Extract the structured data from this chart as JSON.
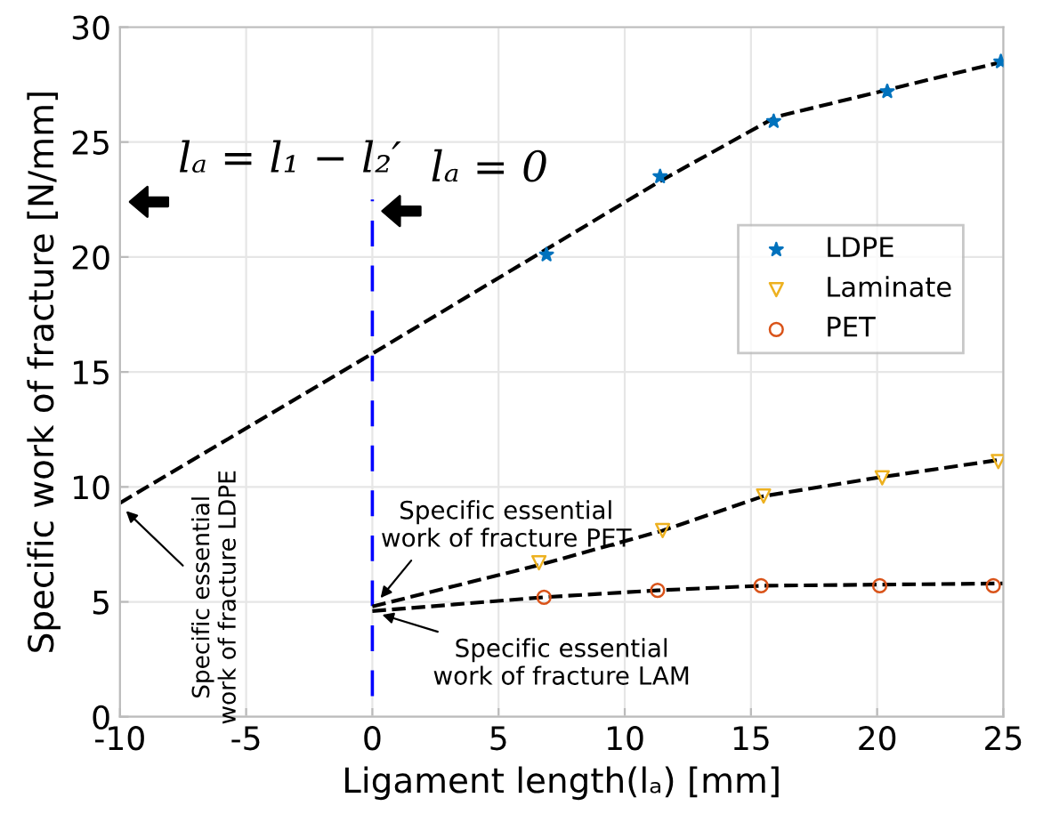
{
  "chart_data": {
    "type": "scatter",
    "xlabel": "Ligament length(lₐ) [mm]",
    "ylabel": "Specific work of fracture [N/mm]",
    "xlim": [
      -10,
      25
    ],
    "xticks": [
      -10,
      -5,
      0,
      5,
      10,
      15,
      20,
      25
    ],
    "ylim": [
      0,
      30
    ],
    "yticks": [
      0,
      5,
      10,
      15,
      20,
      25,
      30
    ],
    "grid": true,
    "legend": "right",
    "series": [
      {
        "name": "LDPE",
        "color": "#0072bd",
        "marker": "star",
        "x": [
          6.9,
          11.4,
          15.9,
          20.4,
          24.9
        ],
        "values": [
          20.1,
          23.5,
          25.9,
          27.2,
          28.5
        ]
      },
      {
        "name": "Laminate",
        "color": "#edb120",
        "marker": "triangle",
        "x": [
          6.6,
          11.5,
          15.5,
          20.2,
          24.8
        ],
        "values": [
          6.7,
          8.1,
          9.6,
          10.4,
          11.1
        ]
      },
      {
        "name": "PET",
        "color": "#d95319",
        "marker": "circle",
        "x": [
          6.8,
          11.3,
          15.4,
          20.1,
          24.6
        ],
        "values": [
          5.2,
          5.5,
          5.7,
          5.7,
          5.7
        ]
      },
      {
        "type": "line",
        "color": "#000000",
        "line_style": "dashed",
        "marker": "none",
        "x": [
          -10,
          0,
          11.4,
          16,
          25
        ],
        "values": [
          9.3,
          15.8,
          23.3,
          26.1,
          28.5
        ]
      },
      {
        "type": "line",
        "color": "#000000",
        "line_style": "dashed",
        "marker": "none",
        "x": [
          0,
          6.6,
          11.5,
          15.5,
          20,
          25
        ],
        "values": [
          4.8,
          6.6,
          8.1,
          9.6,
          10.4,
          11.2
        ]
      },
      {
        "type": "line",
        "color": "#000000",
        "line_style": "dashed",
        "marker": "none",
        "x": [
          0,
          6.8,
          11.3,
          15.4,
          25
        ],
        "values": [
          4.6,
          5.2,
          5.5,
          5.7,
          5.8
        ]
      }
    ],
    "ref_lines": [
      {
        "axis": "x",
        "value": 0,
        "color": "#0000ff",
        "line_style": "dashed"
      }
    ],
    "annotations": [
      "lₐ = l₁ − l₂′",
      "lₐ = 0",
      "Specific essential\nwork of fracture LDPE",
      {
        "text": "Specific essential\nwork of fracture PET",
        "x": 0.2,
        "y": 5.0
      },
      {
        "text": "Specific essential\nwork of fracture LAM",
        "x": 0.2,
        "y": 4.5
      }
    ]
  }
}
